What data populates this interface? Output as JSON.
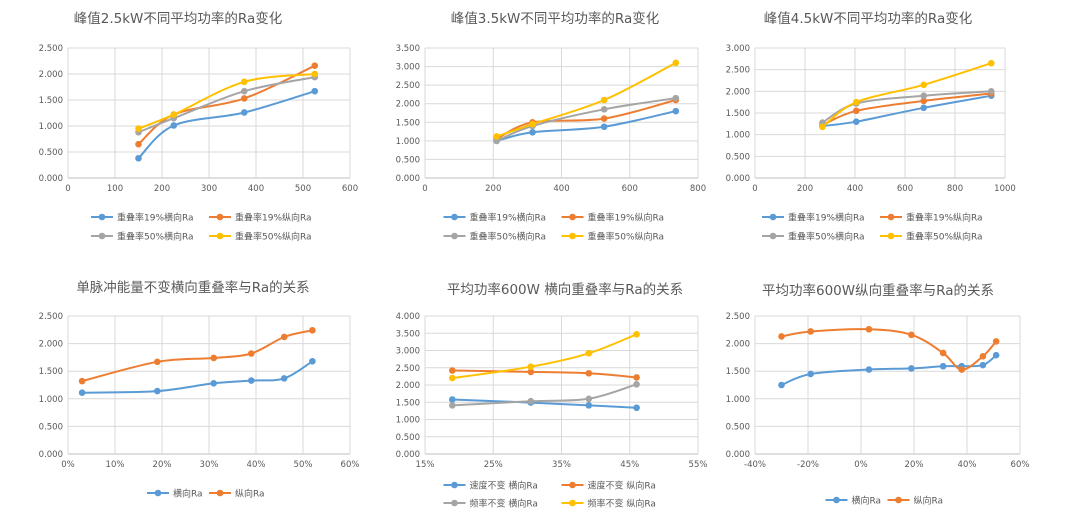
{
  "colors": {
    "blue": "#5B9BD5",
    "orange": "#ED7D31",
    "gray": "#A5A5A5",
    "yellow": "#FFC000",
    "grid": "#D9D9D9",
    "axis": "#BFBFBF",
    "text": "#595959"
  },
  "chart_data": [
    {
      "type": "scatter",
      "title": "峰值2.5kW不同平均功率的Ra变化",
      "xlim": [
        0,
        600
      ],
      "xticks": [
        0,
        100,
        200,
        300,
        400,
        500,
        600
      ],
      "xtick_labels": [
        "0",
        "100",
        "200",
        "300",
        "400",
        "500",
        "600"
      ],
      "ylim": [
        0,
        2.5
      ],
      "yticks": [
        0,
        0.5,
        1.0,
        1.5,
        2.0,
        2.5
      ],
      "ytick_labels": [
        "0.000",
        "0.500",
        "1.000",
        "1.500",
        "2.000",
        "2.500"
      ],
      "grid": true,
      "legend": "bottom-two-rows",
      "series": [
        {
          "name": "重叠率19%横向Ra",
          "color": "blue",
          "x": [
            150,
            225,
            375,
            525
          ],
          "y": [
            0.38,
            1.01,
            1.26,
            1.67
          ]
        },
        {
          "name": "重叠率19%纵向Ra",
          "color": "orange",
          "x": [
            150,
            225,
            375,
            525
          ],
          "y": [
            0.65,
            1.22,
            1.53,
            2.16
          ]
        },
        {
          "name": "重叠率50%横向Ra",
          "color": "gray",
          "x": [
            150,
            225,
            375,
            525
          ],
          "y": [
            0.88,
            1.15,
            1.67,
            1.94
          ]
        },
        {
          "name": "重叠率50%纵向Ra",
          "color": "yellow",
          "x": [
            150,
            225,
            375,
            525
          ],
          "y": [
            0.95,
            1.22,
            1.85,
            2.0
          ]
        }
      ]
    },
    {
      "type": "scatter",
      "title": "峰值3.5kW不同平均功率的Ra变化",
      "xlim": [
        0,
        800
      ],
      "xticks": [
        0,
        200,
        400,
        600,
        800
      ],
      "xtick_labels": [
        "0",
        "200",
        "400",
        "600",
        "800"
      ],
      "ylim": [
        0,
        3.5
      ],
      "yticks": [
        0,
        0.5,
        1.0,
        1.5,
        2.0,
        2.5,
        3.0,
        3.5
      ],
      "ytick_labels": [
        "0.000",
        "0.500",
        "1.000",
        "1.500",
        "2.000",
        "2.500",
        "3.000",
        "3.500"
      ],
      "grid": true,
      "legend": "bottom-two-rows",
      "series": [
        {
          "name": "重叠率19%横向Ra",
          "color": "blue",
          "x": [
            210,
            315,
            525,
            735
          ],
          "y": [
            1.0,
            1.23,
            1.38,
            1.8
          ]
        },
        {
          "name": "重叠率19%纵向Ra",
          "color": "orange",
          "x": [
            210,
            315,
            525,
            735
          ],
          "y": [
            1.05,
            1.5,
            1.6,
            2.1
          ]
        },
        {
          "name": "重叠率50%横向Ra",
          "color": "gray",
          "x": [
            210,
            315,
            525,
            735
          ],
          "y": [
            1.0,
            1.4,
            1.85,
            2.15
          ]
        },
        {
          "name": "重叠率50%纵向Ra",
          "color": "yellow",
          "x": [
            210,
            315,
            525,
            735
          ],
          "y": [
            1.12,
            1.45,
            2.1,
            3.1
          ]
        }
      ]
    },
    {
      "type": "scatter",
      "title": "峰值4.5kW不同平均功率的Ra变化",
      "xlim": [
        0,
        1000
      ],
      "xticks": [
        0,
        200,
        400,
        600,
        800,
        1000
      ],
      "xtick_labels": [
        "0",
        "200",
        "400",
        "600",
        "800",
        "1000"
      ],
      "ylim": [
        0,
        3.0
      ],
      "yticks": [
        0,
        0.5,
        1.0,
        1.5,
        2.0,
        2.5,
        3.0
      ],
      "ytick_labels": [
        "0.000",
        "0.500",
        "1.000",
        "1.500",
        "2.000",
        "2.500",
        "3.000"
      ],
      "grid": true,
      "legend": "bottom-two-rows",
      "series": [
        {
          "name": "重叠率19%横向Ra",
          "color": "blue",
          "x": [
            270,
            405,
            675,
            945
          ],
          "y": [
            1.2,
            1.3,
            1.62,
            1.9
          ]
        },
        {
          "name": "重叠率19%纵向Ra",
          "color": "orange",
          "x": [
            270,
            405,
            675,
            945
          ],
          "y": [
            1.22,
            1.55,
            1.78,
            1.95
          ]
        },
        {
          "name": "重叠率50%横向Ra",
          "color": "gray",
          "x": [
            270,
            405,
            675,
            945
          ],
          "y": [
            1.28,
            1.72,
            1.9,
            2.0
          ]
        },
        {
          "name": "重叠率50%纵向Ra",
          "color": "yellow",
          "x": [
            270,
            405,
            675,
            945
          ],
          "y": [
            1.18,
            1.75,
            2.15,
            2.65
          ]
        }
      ]
    },
    {
      "type": "scatter",
      "title": "单脉冲能量不变横向重叠率与Ra的关系",
      "xlim": [
        0,
        60
      ],
      "xticks": [
        0,
        10,
        20,
        30,
        40,
        50,
        60
      ],
      "xtick_labels": [
        "0%",
        "10%",
        "20%",
        "30%",
        "40%",
        "50%",
        "60%"
      ],
      "ylim": [
        0,
        2.5
      ],
      "yticks": [
        0,
        0.5,
        1.0,
        1.5,
        2.0,
        2.5
      ],
      "ytick_labels": [
        "0.000",
        "0.500",
        "1.000",
        "1.500",
        "2.000",
        "2.500"
      ],
      "grid": true,
      "legend": "bottom-one-row",
      "series": [
        {
          "name": "横向Ra",
          "color": "blue",
          "x": [
            3,
            19,
            31,
            39,
            46,
            52
          ],
          "y": [
            1.11,
            1.14,
            1.28,
            1.33,
            1.37,
            1.68
          ]
        },
        {
          "name": "纵向Ra",
          "color": "orange",
          "x": [
            3,
            19,
            31,
            39,
            46,
            52
          ],
          "y": [
            1.32,
            1.67,
            1.74,
            1.82,
            2.12,
            2.24
          ]
        }
      ]
    },
    {
      "type": "scatter",
      "title": "平均功率600W 横向重叠率与Ra的关系",
      "xlim": [
        15,
        55
      ],
      "xticks": [
        15,
        25,
        35,
        45,
        55
      ],
      "xtick_labels": [
        "15%",
        "25%",
        "35%",
        "45%",
        "55%"
      ],
      "ylim": [
        0,
        4.0
      ],
      "yticks": [
        0,
        0.5,
        1.0,
        1.5,
        2.0,
        2.5,
        3.0,
        3.5,
        4.0
      ],
      "ytick_labels": [
        "0.000",
        "0.500",
        "1.000",
        "1.500",
        "2.000",
        "2.500",
        "3.000",
        "3.500",
        "4.000"
      ],
      "grid": true,
      "legend": "bottom-two-rows",
      "series": [
        {
          "name": "速度不变 横向Ra",
          "color": "blue",
          "x": [
            19,
            30.5,
            39,
            46
          ],
          "y": [
            1.58,
            1.49,
            1.41,
            1.34
          ]
        },
        {
          "name": "速度不变 纵向Ra",
          "color": "orange",
          "x": [
            19,
            30.5,
            39,
            46
          ],
          "y": [
            2.42,
            2.38,
            2.34,
            2.22
          ]
        },
        {
          "name": "频率不变 横向Ra",
          "color": "gray",
          "x": [
            19,
            30.5,
            39,
            46
          ],
          "y": [
            1.41,
            1.53,
            1.6,
            2.02
          ]
        },
        {
          "name": "频率不变 纵向Ra",
          "color": "yellow",
          "x": [
            19,
            30.5,
            39,
            46
          ],
          "y": [
            2.2,
            2.53,
            2.92,
            3.47
          ]
        }
      ]
    },
    {
      "type": "scatter",
      "title": "平均功率600W纵向重叠率与Ra的关系",
      "xlim": [
        -40,
        60
      ],
      "xticks": [
        -40,
        -20,
        0,
        20,
        40,
        60
      ],
      "xtick_labels": [
        "-40%",
        "-20%",
        "0%",
        "20%",
        "40%",
        "60%"
      ],
      "ylim": [
        0,
        2.5
      ],
      "yticks": [
        0,
        0.5,
        1.0,
        1.5,
        2.0,
        2.5
      ],
      "ytick_labels": [
        "0.000",
        "0.500",
        "1.000",
        "1.500",
        "2.000",
        "2.500"
      ],
      "grid": true,
      "legend": "bottom-one-row",
      "series": [
        {
          "name": "横向Ra",
          "color": "blue",
          "x": [
            -30,
            -19,
            3,
            19,
            31,
            38,
            46,
            51
          ],
          "y": [
            1.25,
            1.45,
            1.53,
            1.55,
            1.59,
            1.59,
            1.61,
            1.79
          ]
        },
        {
          "name": "纵向Ra",
          "color": "orange",
          "x": [
            -30,
            -19,
            3,
            19,
            31,
            38,
            46,
            51
          ],
          "y": [
            2.13,
            2.22,
            2.26,
            2.16,
            1.83,
            1.53,
            1.77,
            2.04
          ]
        }
      ]
    }
  ]
}
